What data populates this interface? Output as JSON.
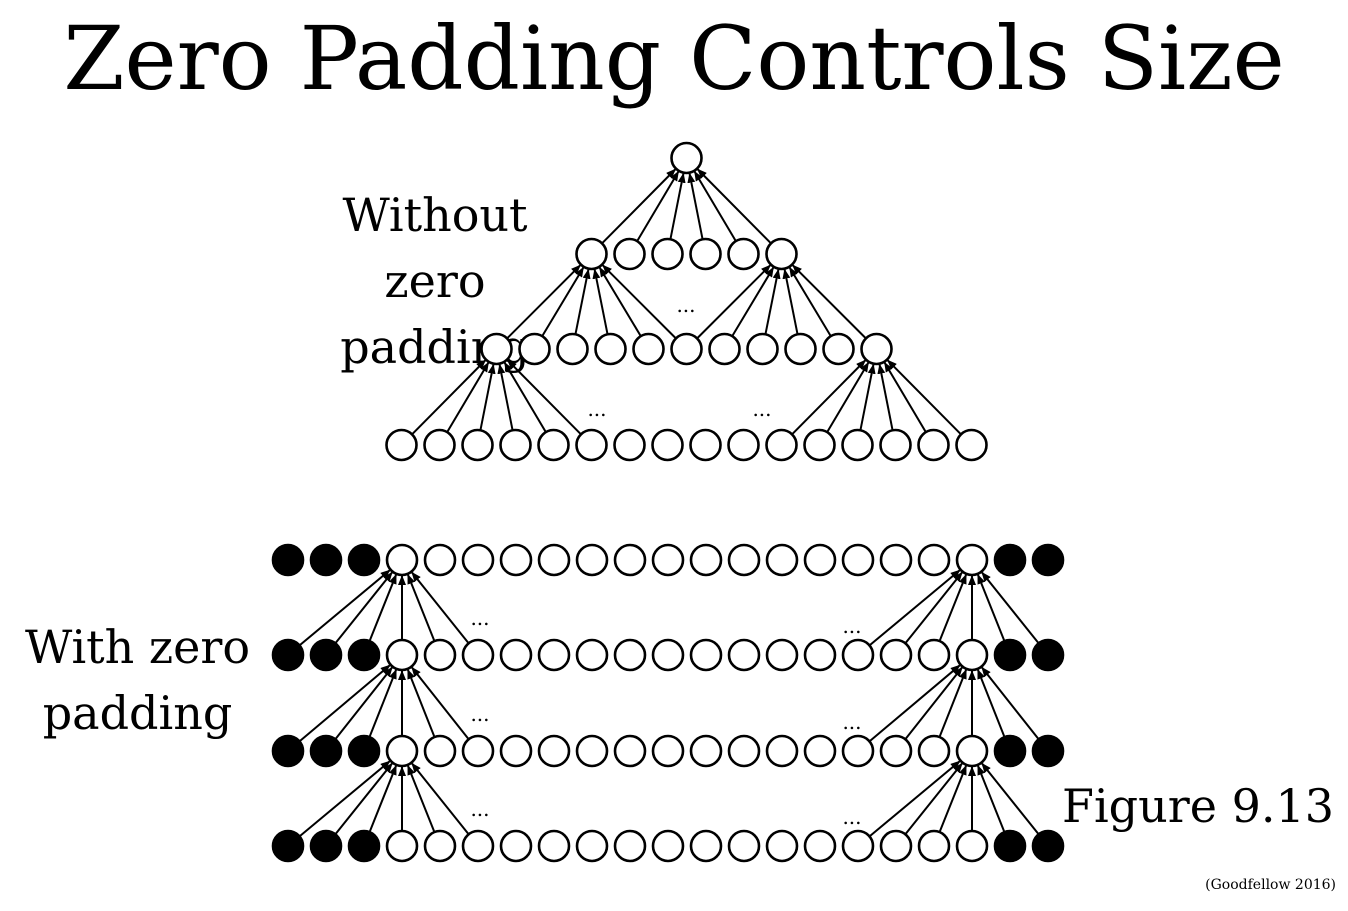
{
  "title": "Zero Padding Controls Size",
  "label_without": [
    "Without zero",
    "padding"
  ],
  "label_with": [
    "With zero",
    "padding"
  ],
  "figure": "Figure 9.13",
  "citation": "(Goodfellow 2016)",
  "ellipsis": "...",
  "no_padding_network": {
    "layer_widths": [
      16,
      11,
      6,
      1
    ],
    "kernel_width": 6
  },
  "zero_padding_network": {
    "layers": 4,
    "width_per_layer": 16,
    "padding_left": 3,
    "padding_right": 2,
    "kernel_width": 6
  }
}
